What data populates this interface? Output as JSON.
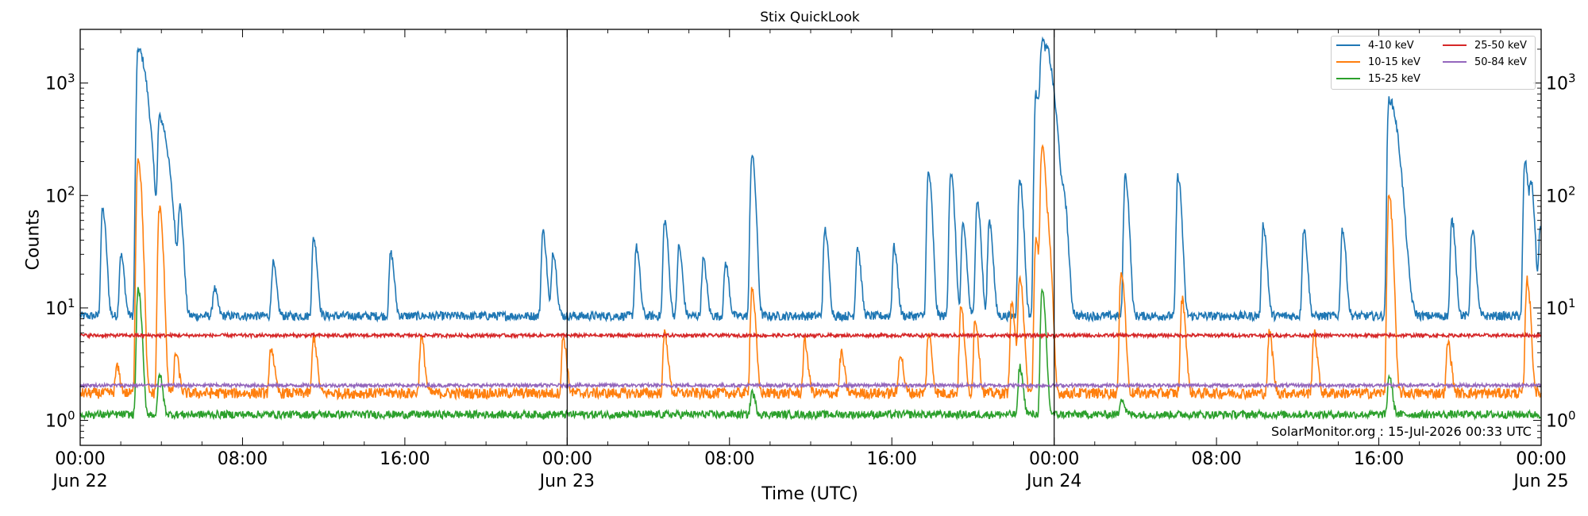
{
  "chart_data": {
    "type": "line",
    "title": "Stix QuickLook",
    "xlabel": "Time (UTC)",
    "ylabel": "Counts",
    "yscale": "log",
    "ylim": [
      0.6,
      3000
    ],
    "xlim_hours": [
      0,
      72
    ],
    "y_ticks": [
      {
        "value": 1,
        "label": "10^0"
      },
      {
        "value": 10,
        "label": "10^1"
      },
      {
        "value": 100,
        "label": "10^2"
      },
      {
        "value": 1000,
        "label": "10^3"
      }
    ],
    "x_ticks": [
      {
        "hour": 0,
        "line1": "00:00",
        "line2": "Jun 22"
      },
      {
        "hour": 8,
        "line1": "08:00",
        "line2": ""
      },
      {
        "hour": 16,
        "line1": "16:00",
        "line2": ""
      },
      {
        "hour": 24,
        "line1": "00:00",
        "line2": "Jun 23"
      },
      {
        "hour": 32,
        "line1": "08:00",
        "line2": ""
      },
      {
        "hour": 40,
        "line1": "16:00",
        "line2": ""
      },
      {
        "hour": 48,
        "line1": "00:00",
        "line2": "Jun 24"
      },
      {
        "hour": 56,
        "line1": "08:00",
        "line2": ""
      },
      {
        "hour": 64,
        "line1": "16:00",
        "line2": ""
      },
      {
        "hour": 72,
        "line1": "00:00",
        "line2": "Jun 25"
      }
    ],
    "day_boundaries_hours": [
      24,
      48
    ],
    "legend_placement": "top-right",
    "series": [
      {
        "name": "4-10 keV",
        "color": "#1f77b4",
        "baseline": 8.5,
        "noise": 0.09,
        "peaks": [
          [
            1.1,
            75
          ],
          [
            2.0,
            30
          ],
          [
            2.85,
            2000
          ],
          [
            3.9,
            480
          ],
          [
            4.9,
            75
          ],
          [
            6.6,
            15
          ],
          [
            9.5,
            25
          ],
          [
            11.5,
            42
          ],
          [
            15.3,
            31
          ],
          [
            22.8,
            48
          ],
          [
            23.3,
            32
          ],
          [
            27.4,
            35
          ],
          [
            28.8,
            60
          ],
          [
            29.5,
            35
          ],
          [
            30.7,
            27
          ],
          [
            31.8,
            25
          ],
          [
            33.1,
            230
          ],
          [
            36.7,
            50
          ],
          [
            38.3,
            35
          ],
          [
            40.1,
            35
          ],
          [
            41.8,
            160
          ],
          [
            42.9,
            160
          ],
          [
            43.5,
            55
          ],
          [
            44.2,
            90
          ],
          [
            44.8,
            60
          ],
          [
            46.3,
            140
          ],
          [
            47.1,
            800
          ],
          [
            47.4,
            1900
          ],
          [
            47.7,
            500
          ],
          [
            48.5,
            62
          ],
          [
            51.5,
            150
          ],
          [
            54.1,
            150
          ],
          [
            58.3,
            55
          ],
          [
            60.3,
            50
          ],
          [
            62.2,
            50
          ],
          [
            64.5,
            720
          ],
          [
            67.6,
            60
          ],
          [
            68.6,
            50
          ],
          [
            71.2,
            200
          ],
          [
            71.5,
            120
          ],
          [
            71.95,
            50
          ]
        ]
      },
      {
        "name": "10-15 keV",
        "color": "#ff7f0e",
        "baseline": 1.75,
        "noise": 0.11,
        "peaks": [
          [
            1.8,
            3
          ],
          [
            2.85,
            220
          ],
          [
            3.9,
            78
          ],
          [
            4.7,
            4
          ],
          [
            9.4,
            4.5
          ],
          [
            11.5,
            5.5
          ],
          [
            16.8,
            5.5
          ],
          [
            23.8,
            5.5
          ],
          [
            28.8,
            6
          ],
          [
            33.1,
            15
          ],
          [
            35.7,
            5
          ],
          [
            37.5,
            4
          ],
          [
            40.4,
            4
          ],
          [
            41.8,
            6
          ],
          [
            43.4,
            10
          ],
          [
            44.1,
            8
          ],
          [
            45.9,
            11
          ],
          [
            46.3,
            20
          ],
          [
            47.1,
            40
          ],
          [
            47.4,
            280
          ],
          [
            47.7,
            40
          ],
          [
            51.3,
            22
          ],
          [
            54.3,
            12
          ],
          [
            58.6,
            6
          ],
          [
            60.8,
            6
          ],
          [
            64.5,
            100
          ],
          [
            67.4,
            5
          ],
          [
            71.3,
            18
          ]
        ]
      },
      {
        "name": "15-25 keV",
        "color": "#2ca02c",
        "baseline": 1.13,
        "noise": 0.08,
        "peaks": [
          [
            2.85,
            15
          ],
          [
            3.9,
            2.6
          ],
          [
            33.1,
            1.8
          ],
          [
            46.3,
            3
          ],
          [
            47.4,
            14
          ],
          [
            51.3,
            1.6
          ],
          [
            64.5,
            2.5
          ]
        ]
      },
      {
        "name": "25-50 keV",
        "color": "#d62728",
        "baseline": 5.7,
        "noise": 0.035,
        "peaks": []
      },
      {
        "name": "50-84 keV",
        "color": "#9467bd",
        "baseline": 2.05,
        "noise": 0.035,
        "peaks": []
      }
    ]
  },
  "credit": "SolarMonitor.org : 15-Jul-2026 00:33 UTC"
}
